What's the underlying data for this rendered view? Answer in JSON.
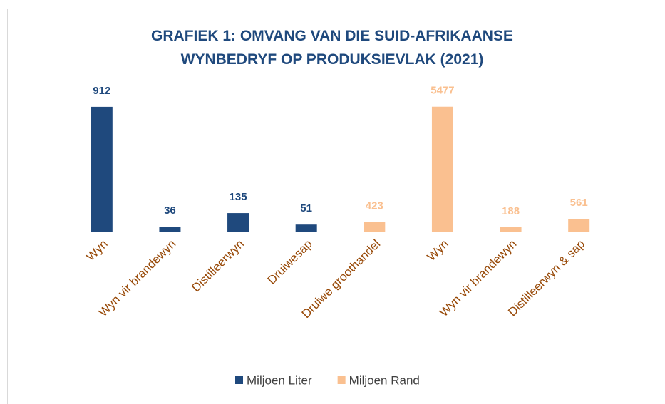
{
  "chart_data": {
    "type": "bar",
    "title": "GRAFIEK 1: OMVANG VAN DIE SUID-AFRIKAANSE WYNBEDRYF OP PRODUKSIEVLAK (2021)",
    "categories": [
      "Wyn",
      "Wyn vir brandewyn",
      "Distilleerwyn",
      "Druiwesap",
      "Druiwe groothandel",
      "Wyn",
      "Wyn vir brandewyn",
      "Distilleerwyn & sap"
    ],
    "series": [
      {
        "name": "Miljoen Liter",
        "color": "#1f497d",
        "values": [
          912,
          36,
          135,
          51,
          null,
          null,
          null,
          null
        ]
      },
      {
        "name": "Miljoen Rand",
        "color": "#fac090",
        "axis": "y2",
        "values": [
          null,
          null,
          null,
          null,
          423,
          5477,
          188,
          561
        ]
      }
    ],
    "ylim": [
      0,
      1000
    ],
    "y2lim": [
      0,
      6000
    ],
    "legend": "bottom"
  }
}
